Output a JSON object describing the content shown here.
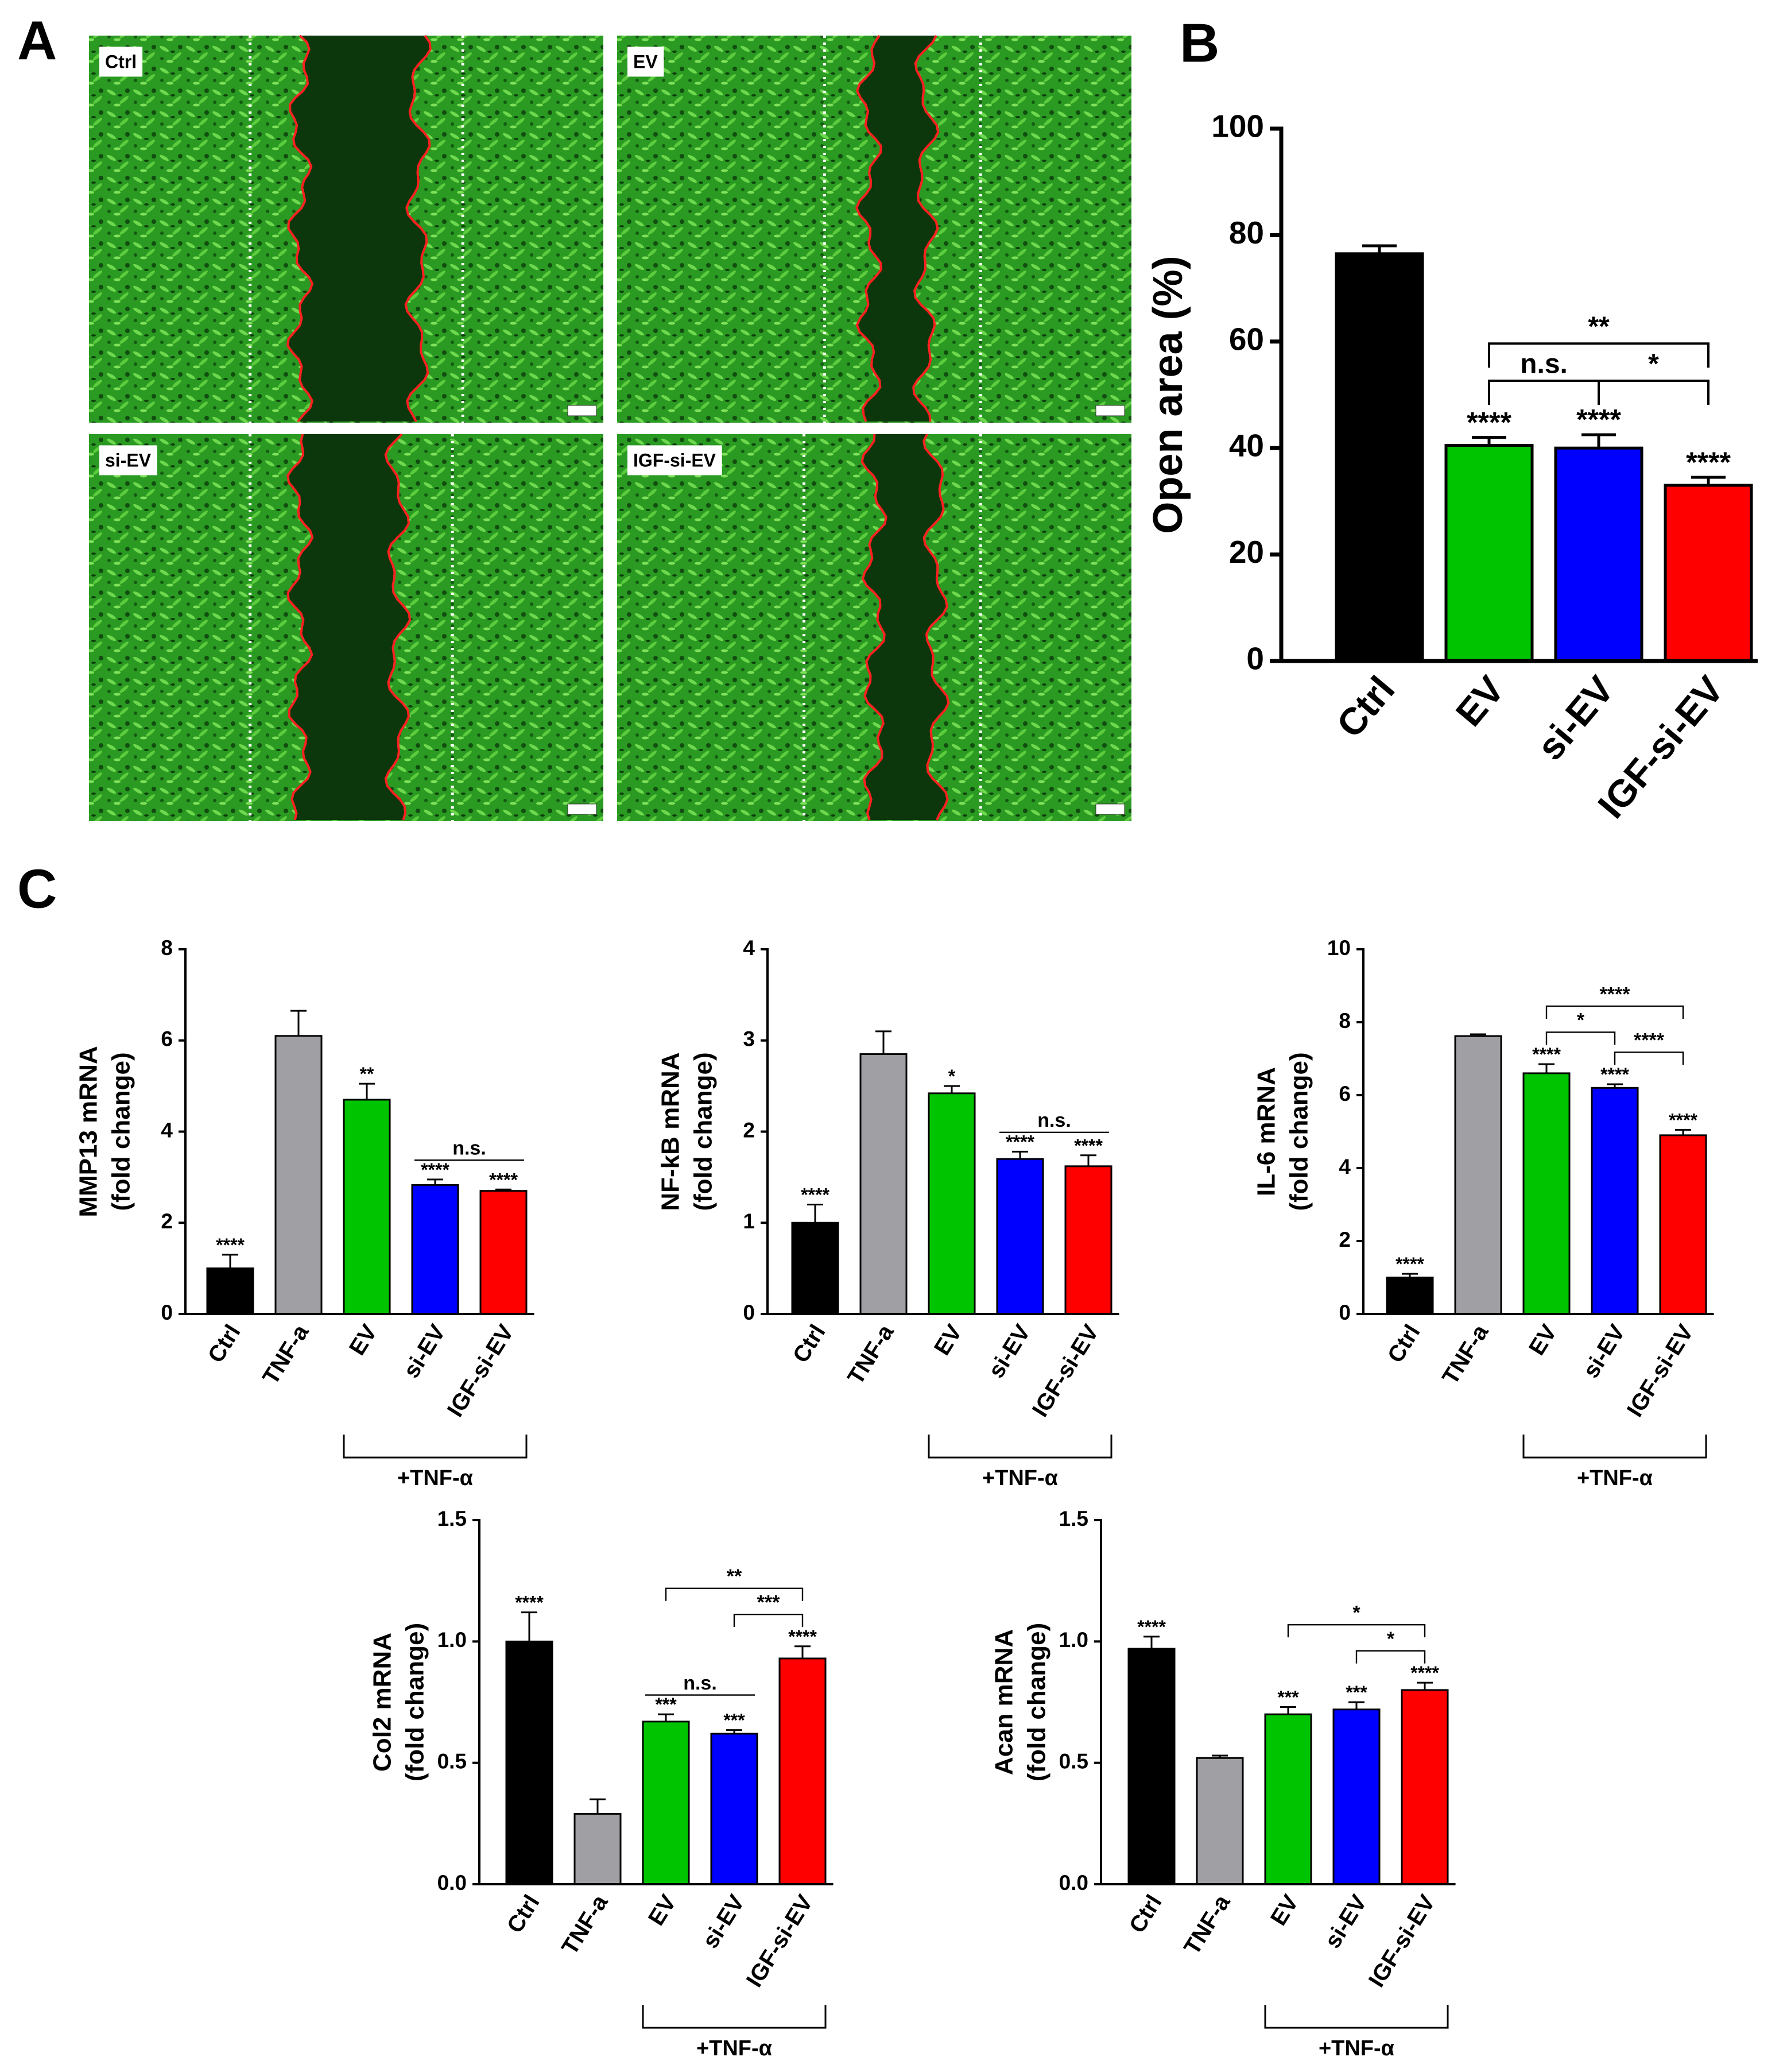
{
  "panel_labels": [
    "A",
    "B",
    "C"
  ],
  "micrographs": [
    "Ctrl",
    "EV",
    "si-EV",
    "IGF-si-EV"
  ],
  "chart_data": [
    {
      "type": "bar",
      "ylabel": [
        "Open area (%)"
      ],
      "categories": [
        "Ctrl",
        "EV",
        "si-EV",
        "IGF-si-EV"
      ],
      "values": [
        76.5,
        40.5,
        40,
        33
      ],
      "errors": [
        1.5,
        1.5,
        2.5,
        1.5
      ],
      "colors": [
        "#000000",
        "#00c400",
        "#0000ff",
        "#ff0000"
      ],
      "significance": [
        null,
        "****",
        "****",
        "****"
      ],
      "comparisons": [
        {
          "pair": [
            "EV",
            "si-EV"
          ],
          "label": "n.s.",
          "legs": true
        },
        {
          "pair": [
            "si-EV",
            "IGF-si-EV"
          ],
          "label": "*",
          "legs": true
        },
        {
          "pair": [
            "EV",
            "IGF-si-EV"
          ],
          "label": "**",
          "legs": true
        }
      ],
      "ylim": [
        0,
        100
      ],
      "yticks": [
        0,
        20,
        40,
        60,
        80,
        100
      ]
    },
    {
      "type": "bar",
      "ylabel": [
        "MMP13 mRNA",
        "(fold change)"
      ],
      "categories": [
        "Ctrl",
        "TNF-a",
        "EV",
        "si-EV",
        "IGF-si-EV"
      ],
      "values": [
        1.0,
        6.1,
        4.7,
        2.83,
        2.7
      ],
      "errors": [
        0.3,
        0.55,
        0.35,
        0.12,
        0.03
      ],
      "colors": [
        "#000000",
        "#a0a0a4",
        "#00c400",
        "#0000ff",
        "#ff0000"
      ],
      "significance": [
        "****",
        null,
        "**",
        "****",
        "****"
      ],
      "comparisons": [
        {
          "pair": [
            "si-EV",
            "IGF-si-EV"
          ],
          "label": "n.s.",
          "legs": false
        }
      ],
      "group": {
        "label": "+TNF-α",
        "pair": [
          "EV",
          "IGF-si-EV"
        ]
      },
      "ylim": [
        0,
        8
      ],
      "yticks": [
        0,
        2,
        4,
        6,
        8
      ]
    },
    {
      "type": "bar",
      "ylabel": [
        "NF-kB mRNA",
        "(fold change)"
      ],
      "categories": [
        "Ctrl",
        "TNF-a",
        "EV",
        "si-EV",
        "IGF-si-EV"
      ],
      "values": [
        1.0,
        2.85,
        2.42,
        1.7,
        1.62
      ],
      "errors": [
        0.2,
        0.25,
        0.08,
        0.08,
        0.12
      ],
      "colors": [
        "#000000",
        "#a0a0a4",
        "#00c400",
        "#0000ff",
        "#ff0000"
      ],
      "significance": [
        "****",
        null,
        "*",
        "****",
        "****"
      ],
      "comparisons": [
        {
          "pair": [
            "si-EV",
            "IGF-si-EV"
          ],
          "label": "n.s.",
          "legs": false
        }
      ],
      "group": {
        "label": "+TNF-α",
        "pair": [
          "EV",
          "IGF-si-EV"
        ]
      },
      "ylim": [
        0,
        4
      ],
      "yticks": [
        0,
        1,
        2,
        3,
        4
      ]
    },
    {
      "type": "bar",
      "ylabel": [
        "IL-6 mRNA",
        "(fold change)"
      ],
      "categories": [
        "Ctrl",
        "TNF-a",
        "EV",
        "si-EV",
        "IGF-si-EV"
      ],
      "values": [
        1.0,
        7.62,
        6.6,
        6.2,
        4.9
      ],
      "errors": [
        0.1,
        0.05,
        0.25,
        0.1,
        0.15
      ],
      "colors": [
        "#000000",
        "#a0a0a4",
        "#00c400",
        "#0000ff",
        "#ff0000"
      ],
      "significance": [
        "****",
        null,
        "****",
        "****",
        "****"
      ],
      "comparisons": [
        {
          "pair": [
            "EV",
            "si-EV"
          ],
          "label": "*",
          "legs": true
        },
        {
          "pair": [
            "si-EV",
            "IGF-si-EV"
          ],
          "label": "****",
          "legs": true
        },
        {
          "pair": [
            "EV",
            "IGF-si-EV"
          ],
          "label": "****",
          "legs": true
        }
      ],
      "group": {
        "label": "+TNF-α",
        "pair": [
          "EV",
          "IGF-si-EV"
        ]
      },
      "ylim": [
        0,
        10
      ],
      "yticks": [
        0,
        2,
        4,
        6,
        8,
        10
      ]
    },
    {
      "type": "bar",
      "ylabel": [
        "Col2 mRNA",
        "(fold change)"
      ],
      "categories": [
        "Ctrl",
        "TNF-a",
        "EV",
        "si-EV",
        "IGF-si-EV"
      ],
      "values": [
        1.0,
        0.29,
        0.67,
        0.62,
        0.93
      ],
      "errors": [
        0.12,
        0.06,
        0.03,
        0.015,
        0.05
      ],
      "colors": [
        "#000000",
        "#a0a0a4",
        "#00c400",
        "#0000ff",
        "#ff0000"
      ],
      "significance": [
        "****",
        null,
        "***",
        "***",
        "****"
      ],
      "comparisons": [
        {
          "pair": [
            "EV",
            "si-EV"
          ],
          "label": "n.s.",
          "legs": false
        },
        {
          "pair": [
            "si-EV",
            "IGF-si-EV"
          ],
          "label": "***",
          "legs": true
        },
        {
          "pair": [
            "EV",
            "IGF-si-EV"
          ],
          "label": "**",
          "legs": true
        }
      ],
      "group": {
        "label": "+TNF-α",
        "pair": [
          "EV",
          "IGF-si-EV"
        ]
      },
      "ylim": [
        0,
        1.5
      ],
      "yticks": [
        {
          "value": 0,
          "label": "0.0"
        },
        0.5,
        {
          "value": 1,
          "label": "1.0"
        },
        1.5
      ]
    },
    {
      "type": "bar",
      "ylabel": [
        "Acan mRNA",
        "(fold change)"
      ],
      "categories": [
        "Ctrl",
        "TNF-a",
        "EV",
        "si-EV",
        "IGF-si-EV"
      ],
      "values": [
        0.97,
        0.52,
        0.7,
        0.72,
        0.8
      ],
      "errors": [
        0.05,
        0.01,
        0.03,
        0.03,
        0.03
      ],
      "colors": [
        "#000000",
        "#a0a0a4",
        "#00c400",
        "#0000ff",
        "#ff0000"
      ],
      "significance": [
        "****",
        null,
        "***",
        "***",
        "****"
      ],
      "comparisons": [
        {
          "pair": [
            "si-EV",
            "IGF-si-EV"
          ],
          "label": "*",
          "legs": true
        },
        {
          "pair": [
            "EV",
            "IGF-si-EV"
          ],
          "label": "*",
          "legs": true
        }
      ],
      "group": {
        "label": "+TNF-α",
        "pair": [
          "EV",
          "IGF-si-EV"
        ]
      },
      "ylim": [
        0,
        1.5
      ],
      "yticks": [
        {
          "value": 0,
          "label": "0.0"
        },
        0.5,
        {
          "value": 1,
          "label": "1.0"
        },
        1.5
      ]
    }
  ]
}
